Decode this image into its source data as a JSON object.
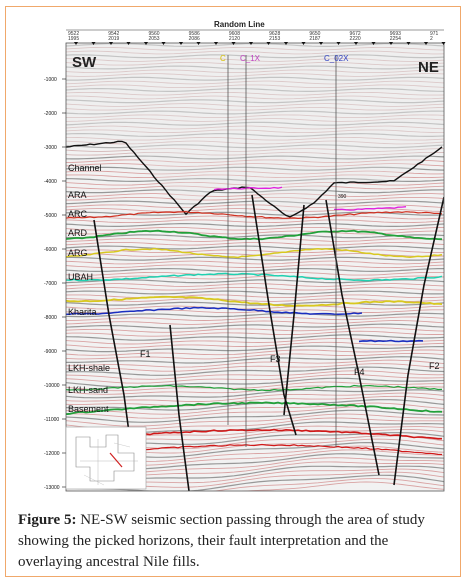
{
  "section": {
    "title": "Random Line",
    "left_dir": "SW",
    "right_dir": "NE",
    "shot_labels": [
      [
        "9522",
        "1995"
      ],
      [
        "9542",
        "2019"
      ],
      [
        "9560",
        "2053"
      ],
      [
        "9586",
        "2086"
      ],
      [
        "9608",
        "2120"
      ],
      [
        "9628",
        "2153"
      ],
      [
        "9650",
        "2187"
      ],
      [
        "9672",
        "2220"
      ],
      [
        "9693",
        "2254"
      ],
      [
        "971",
        "2"
      ]
    ],
    "depth_ticks": [
      "-1000",
      "-2000",
      "-3000",
      "-4000",
      "-5000",
      "-6000",
      "-7000",
      "-8000",
      "-9000",
      "-10000",
      "-11000",
      "-12000",
      "-13000"
    ],
    "wells": [
      "C_1X",
      "C_02X"
    ],
    "well_c": "C",
    "well_near_mark": "390",
    "horizons": [
      "Channel",
      "ARA",
      "ARC",
      "ARD",
      "ARG",
      "UBAH",
      "Kharita",
      "LKH-shale",
      "LKH-sand",
      "Basement"
    ],
    "faults": [
      "F1",
      "F3",
      "F4",
      "F2"
    ],
    "colors": {
      "channel": "#111111",
      "ARA": "#e020e0",
      "ARC": "#d03020",
      "ARD": "#22a03a",
      "ARG": "#d8c820",
      "UBAH": "#20d0b0",
      "Kharita": "#1a2ec0",
      "basement": "#d01818",
      "well_c": "#d8c000",
      "well_1x": "#c040c0",
      "well_02x": "#3040c0"
    }
  },
  "caption": {
    "label": "Figure 5:",
    "text": " NE-SW seismic section passing through the area of study showing the picked horizons, their fault interpretation and the overlaying ancestral Nile fills."
  }
}
